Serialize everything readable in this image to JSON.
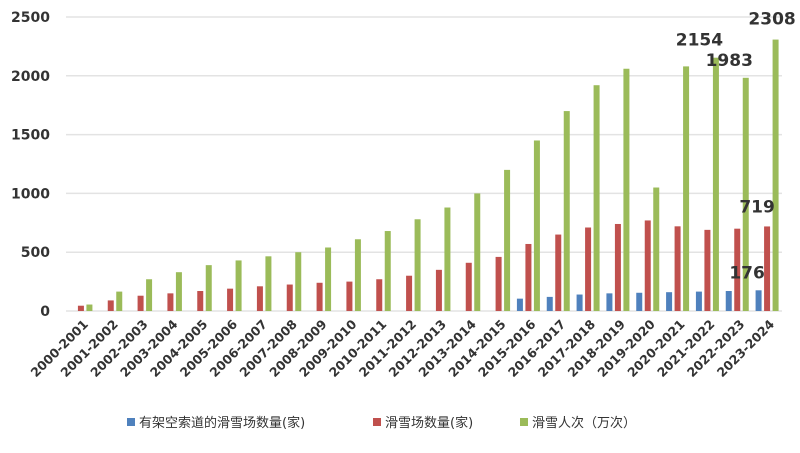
{
  "chart_data": {
    "type": "bar",
    "title": "",
    "xlabel": "",
    "ylabel": "",
    "ylim": [
      0,
      2500
    ],
    "yticks": [
      0,
      500,
      1000,
      1500,
      2000,
      2500
    ],
    "grid": true,
    "legend_position": "bottom",
    "categories": [
      "2000-2001",
      "2001-2002",
      "2002-2003",
      "2003-2004",
      "2004-2005",
      "2005-2006",
      "2006-2007",
      "2007-2008",
      "2008-2009",
      "2009-2010",
      "2010-2011",
      "2011-2012",
      "2012-2013",
      "2013-2014",
      "2014-2015",
      "2015-2016",
      "2016-2017",
      "2017-2018",
      "2018-2019",
      "2019-2020",
      "2020-2021",
      "2021-2022",
      "2022-2023",
      "2023-2024"
    ],
    "series": [
      {
        "name": "有架空索道的滑雪场数量(家)",
        "color": "#4f81bd",
        "values": [
          null,
          null,
          null,
          null,
          null,
          null,
          null,
          null,
          null,
          null,
          null,
          null,
          null,
          null,
          null,
          105,
          120,
          140,
          150,
          155,
          160,
          165,
          170,
          176
        ]
      },
      {
        "name": "滑雪场数量(家)",
        "color": "#c0504d",
        "values": [
          45,
          90,
          130,
          150,
          170,
          190,
          210,
          225,
          240,
          250,
          270,
          300,
          350,
          410,
          460,
          570,
          650,
          710,
          740,
          770,
          720,
          690,
          700,
          719
        ]
      },
      {
        "name": "滑雪人次（万次）",
        "color": "#9bbb59",
        "values": [
          55,
          165,
          270,
          330,
          390,
          430,
          465,
          500,
          540,
          610,
          680,
          780,
          880,
          1000,
          1200,
          1450,
          1700,
          1920,
          2060,
          1050,
          2080,
          2154,
          1983,
          2308
        ]
      }
    ],
    "data_labels": [
      {
        "series": 2,
        "index": 21,
        "text": "2154"
      },
      {
        "series": 2,
        "index": 22,
        "text": "1983"
      },
      {
        "series": 2,
        "index": 23,
        "text": "2308"
      },
      {
        "series": 1,
        "index": 23,
        "text": "719"
      },
      {
        "series": 0,
        "index": 23,
        "text": "176"
      }
    ]
  }
}
